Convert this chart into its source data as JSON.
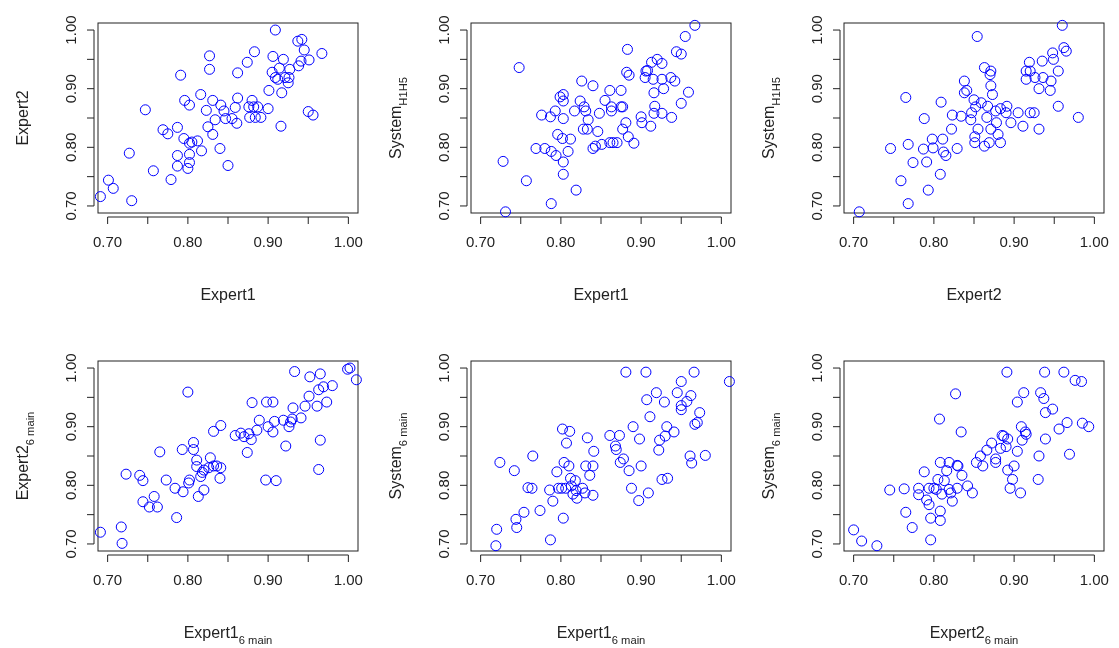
{
  "chart_data": [
    {
      "type": "scatter",
      "xlabel": "Expert1",
      "ylabel": "Expert2",
      "color": "#0000ff",
      "marker": "circle",
      "grid": false,
      "xlim": [
        0.688,
        1.012
      ],
      "ylim": [
        0.688,
        1.012
      ],
      "xticks": [
        {
          "value": 0.7,
          "label": "0.70"
        },
        {
          "value": 0.75,
          "label": null
        },
        {
          "value": 0.8,
          "label": "0.80"
        },
        {
          "value": 0.85,
          "label": null
        },
        {
          "value": 0.9,
          "label": "0.90"
        },
        {
          "value": 0.95,
          "label": null
        },
        {
          "value": 1,
          "label": "1.00"
        }
      ],
      "yticks": [
        {
          "value": 0.7,
          "label": "0.70"
        },
        {
          "value": 0.75,
          "label": null
        },
        {
          "value": 0.8,
          "label": "0.80"
        },
        {
          "value": 0.85,
          "label": null
        },
        {
          "value": 0.9,
          "label": "0.90"
        },
        {
          "value": 0.95,
          "label": null
        },
        {
          "value": 1,
          "label": "1.00"
        }
      ],
      "x": [
        0.691,
        0.701,
        0.707,
        0.727,
        0.73,
        0.747,
        0.757,
        0.769,
        0.775,
        0.779,
        0.787,
        0.787,
        0.787,
        0.791,
        0.795,
        0.796,
        0.8,
        0.802,
        0.802,
        0.802,
        0.802,
        0.805,
        0.812,
        0.817,
        0.816,
        0.823,
        0.825,
        0.827,
        0.827,
        0.831,
        0.831,
        0.834,
        0.84,
        0.841,
        0.845,
        0.847,
        0.85,
        0.855,
        0.861,
        0.862,
        0.862,
        0.859,
        0.874,
        0.876,
        0.877,
        0.88,
        0.882,
        0.883,
        0.884,
        0.887,
        0.891,
        0.9,
        0.901,
        0.906,
        0.905,
        0.909,
        0.912,
        0.914,
        0.917,
        0.916,
        0.919,
        0.921,
        0.925,
        0.927,
        0.926,
        0.938,
        0.937,
        0.942,
        0.941,
        0.945,
        0.951,
        0.95,
        0.956,
        0.967,
        0.909
      ],
      "values": [
        0.716,
        0.744,
        0.73,
        0.79,
        0.709,
        0.864,
        0.76,
        0.83,
        0.823,
        0.745,
        0.834,
        0.786,
        0.768,
        0.923,
        0.815,
        0.88,
        0.764,
        0.872,
        0.774,
        0.788,
        0.807,
        0.809,
        0.811,
        0.794,
        0.89,
        0.863,
        0.835,
        0.956,
        0.933,
        0.88,
        0.822,
        0.847,
        0.798,
        0.872,
        0.862,
        0.849,
        0.769,
        0.849,
        0.841,
        0.927,
        0.884,
        0.868,
        0.945,
        0.869,
        0.851,
        0.88,
        0.869,
        0.963,
        0.851,
        0.869,
        0.851,
        0.866,
        0.897,
        0.955,
        0.928,
        0.919,
        0.916,
        0.935,
        0.893,
        0.836,
        0.95,
        0.919,
        0.91,
        0.933,
        0.919,
        0.939,
        0.981,
        0.984,
        0.947,
        0.966,
        0.949,
        0.861,
        0.855,
        0.96,
        1.0
      ]
    },
    {
      "type": "scatter",
      "xlabel": "Expert1",
      "ylabel": "System$_{H1H5}$",
      "color": "#0000ff",
      "marker": "circle",
      "grid": false,
      "xlim": [
        0.688,
        1.012
      ],
      "ylim": [
        0.688,
        1.012
      ],
      "xticks": [
        {
          "value": 0.7,
          "label": "0.70"
        },
        {
          "value": 0.75,
          "label": null
        },
        {
          "value": 0.8,
          "label": "0.80"
        },
        {
          "value": 0.85,
          "label": null
        },
        {
          "value": 0.9,
          "label": "0.90"
        },
        {
          "value": 0.95,
          "label": null
        },
        {
          "value": 1,
          "label": "1.00"
        }
      ],
      "yticks": [
        {
          "value": 0.7,
          "label": "0.70"
        },
        {
          "value": 0.75,
          "label": null
        },
        {
          "value": 0.8,
          "label": "0.80"
        },
        {
          "value": 0.85,
          "label": null
        },
        {
          "value": 0.9,
          "label": "0.90"
        },
        {
          "value": 0.95,
          "label": null
        },
        {
          "value": 1,
          "label": "1.00"
        }
      ],
      "x": [
        0.731,
        0.728,
        0.748,
        0.757,
        0.769,
        0.776,
        0.78,
        0.787,
        0.788,
        0.793,
        0.794,
        0.796,
        0.799,
        0.802,
        0.803,
        0.803,
        0.803,
        0.803,
        0.803,
        0.809,
        0.812,
        0.817,
        0.819,
        0.788,
        0.824,
        0.826,
        0.829,
        0.831,
        0.828,
        0.833,
        0.834,
        0.84,
        0.84,
        0.843,
        0.846,
        0.848,
        0.851,
        0.855,
        0.861,
        0.861,
        0.863,
        0.863,
        0.865,
        0.87,
        0.875,
        0.875,
        0.877,
        0.877,
        0.881,
        0.883,
        0.882,
        0.885,
        0.884,
        0.891,
        0.9,
        0.901,
        0.905,
        0.906,
        0.908,
        0.912,
        0.913,
        0.916,
        0.917,
        0.916,
        0.915,
        0.92,
        0.926,
        0.926,
        0.926,
        0.928,
        0.937,
        0.938,
        0.942,
        0.944,
        0.95,
        0.95,
        0.955,
        0.959,
        0.967
      ],
      "values": [
        0.69,
        0.776,
        0.936,
        0.743,
        0.798,
        0.855,
        0.798,
        0.852,
        0.793,
        0.862,
        0.786,
        0.822,
        0.886,
        0.815,
        0.849,
        0.775,
        0.89,
        0.879,
        0.754,
        0.793,
        0.814,
        0.862,
        0.727,
        0.704,
        0.879,
        0.913,
        0.869,
        0.862,
        0.831,
        0.831,
        0.847,
        0.905,
        0.798,
        0.802,
        0.827,
        0.858,
        0.805,
        0.88,
        0.808,
        0.897,
        0.869,
        0.862,
        0.808,
        0.808,
        0.897,
        0.869,
        0.869,
        0.831,
        0.842,
        0.967,
        0.928,
        0.923,
        0.818,
        0.807,
        0.852,
        0.842,
        0.919,
        0.93,
        0.931,
        0.836,
        0.945,
        0.893,
        0.87,
        0.858,
        0.916,
        0.95,
        0.943,
        0.916,
        0.858,
        0.9,
        0.919,
        0.851,
        0.913,
        0.963,
        0.959,
        0.875,
        0.989,
        0.894,
        1.008
      ]
    },
    {
      "type": "scatter",
      "xlabel": "Expert2",
      "ylabel": "System$_{H1H5}$",
      "color": "#0000ff",
      "marker": "circle",
      "grid": false,
      "xlim": [
        0.688,
        1.012
      ],
      "ylim": [
        0.688,
        1.012
      ],
      "xticks": [
        {
          "value": 0.7,
          "label": "0.70"
        },
        {
          "value": 0.75,
          "label": null
        },
        {
          "value": 0.8,
          "label": "0.80"
        },
        {
          "value": 0.85,
          "label": null
        },
        {
          "value": 0.9,
          "label": "0.90"
        },
        {
          "value": 0.95,
          "label": null
        },
        {
          "value": 1,
          "label": "1.00"
        }
      ],
      "yticks": [
        {
          "value": 0.7,
          "label": "0.70"
        },
        {
          "value": 0.75,
          "label": null
        },
        {
          "value": 0.8,
          "label": "0.80"
        },
        {
          "value": 0.85,
          "label": null
        },
        {
          "value": 0.9,
          "label": "0.90"
        },
        {
          "value": 0.95,
          "label": null
        },
        {
          "value": 1,
          "label": "1.00"
        }
      ],
      "x": [
        0.707,
        0.746,
        0.759,
        0.765,
        0.768,
        0.768,
        0.774,
        0.787,
        0.788,
        0.791,
        0.793,
        0.798,
        0.799,
        0.809,
        0.808,
        0.811,
        0.812,
        0.815,
        0.822,
        0.823,
        0.829,
        0.834,
        0.838,
        0.838,
        0.841,
        0.846,
        0.847,
        0.85,
        0.851,
        0.851,
        0.852,
        0.854,
        0.855,
        0.859,
        0.863,
        0.863,
        0.866,
        0.867,
        0.869,
        0.87,
        0.871,
        0.871,
        0.871,
        0.873,
        0.877,
        0.878,
        0.88,
        0.883,
        0.883,
        0.89,
        0.891,
        0.896,
        0.905,
        0.911,
        0.915,
        0.915,
        0.919,
        0.92,
        0.92,
        0.925,
        0.926,
        0.931,
        0.931,
        0.935,
        0.936,
        0.945,
        0.946,
        0.948,
        0.949,
        0.955,
        0.955,
        0.96,
        0.962,
        0.965,
        0.98
      ],
      "values": [
        0.69,
        0.798,
        0.743,
        0.885,
        0.805,
        0.704,
        0.774,
        0.797,
        0.849,
        0.775,
        0.727,
        0.814,
        0.799,
        0.877,
        0.754,
        0.814,
        0.792,
        0.786,
        0.831,
        0.855,
        0.798,
        0.853,
        0.913,
        0.893,
        0.897,
        0.847,
        0.859,
        0.881,
        0.818,
        0.808,
        0.869,
        0.989,
        0.831,
        0.876,
        0.936,
        0.802,
        0.851,
        0.87,
        0.808,
        0.924,
        0.831,
        0.93,
        0.905,
        0.89,
        0.862,
        0.842,
        0.822,
        0.808,
        0.866,
        0.859,
        0.87,
        0.842,
        0.859,
        0.836,
        0.93,
        0.916,
        0.945,
        0.93,
        0.859,
        0.859,
        0.919,
        0.9,
        0.831,
        0.947,
        0.919,
        0.897,
        0.913,
        0.961,
        0.95,
        0.93,
        0.87,
        1.008,
        0.97,
        0.964,
        0.851
      ]
    },
    {
      "type": "scatter",
      "xlabel": "Expert1$_{6 main}$",
      "ylabel": "Expert2$_{6 main}$",
      "color": "#0000ff",
      "marker": "circle",
      "grid": false,
      "xlim": [
        0.688,
        1.012
      ],
      "ylim": [
        0.688,
        1.012
      ],
      "xticks": [
        {
          "value": 0.7,
          "label": "0.70"
        },
        {
          "value": 0.75,
          "label": null
        },
        {
          "value": 0.8,
          "label": "0.80"
        },
        {
          "value": 0.85,
          "label": null
        },
        {
          "value": 0.9,
          "label": "0.90"
        },
        {
          "value": 0.95,
          "label": null
        },
        {
          "value": 1,
          "label": "1.00"
        }
      ],
      "yticks": [
        {
          "value": 0.7,
          "label": "0.70"
        },
        {
          "value": 0.75,
          "label": null
        },
        {
          "value": 0.8,
          "label": "0.80"
        },
        {
          "value": 0.85,
          "label": null
        },
        {
          "value": 0.9,
          "label": "0.90"
        },
        {
          "value": 0.95,
          "label": null
        },
        {
          "value": 1,
          "label": "1.00"
        }
      ],
      "x": [
        0.691,
        0.717,
        0.718,
        0.723,
        0.74,
        0.744,
        0.744,
        0.752,
        0.758,
        0.762,
        0.765,
        0.773,
        0.784,
        0.786,
        0.793,
        0.794,
        0.8,
        0.801,
        0.802,
        0.807,
        0.807,
        0.811,
        0.811,
        0.813,
        0.816,
        0.818,
        0.82,
        0.82,
        0.826,
        0.828,
        0.832,
        0.832,
        0.836,
        0.84,
        0.841,
        0.841,
        0.859,
        0.866,
        0.87,
        0.874,
        0.876,
        0.879,
        0.88,
        0.886,
        0.889,
        0.897,
        0.898,
        0.9,
        0.906,
        0.906,
        0.908,
        0.91,
        0.919,
        0.922,
        0.926,
        0.928,
        0.93,
        0.931,
        0.933,
        0.941,
        0.946,
        0.951,
        0.952,
        0.961,
        0.963,
        0.965,
        0.963,
        0.965,
        0.969,
        0.973,
        0.98,
        0.999,
        1.002,
        1.01
      ],
      "values": [
        0.72,
        0.729,
        0.701,
        0.819,
        0.817,
        0.808,
        0.772,
        0.763,
        0.781,
        0.763,
        0.857,
        0.809,
        0.795,
        0.745,
        0.861,
        0.789,
        0.959,
        0.804,
        0.809,
        0.873,
        0.861,
        0.843,
        0.832,
        0.781,
        0.815,
        0.822,
        0.792,
        0.826,
        0.83,
        0.847,
        0.892,
        0.833,
        0.833,
        0.812,
        0.83,
        0.902,
        0.885,
        0.889,
        0.883,
        0.856,
        0.888,
        0.878,
        0.941,
        0.894,
        0.911,
        0.809,
        0.942,
        0.9,
        0.942,
        0.891,
        0.909,
        0.808,
        0.911,
        0.867,
        0.9,
        0.908,
        0.913,
        0.932,
        0.994,
        0.915,
        0.935,
        0.952,
        0.985,
        0.935,
        0.827,
        0.877,
        0.963,
        0.99,
        0.968,
        0.942,
        0.97,
        0.998,
        1.0,
        0.98
      ]
    },
    {
      "type": "scatter",
      "xlabel": "Expert1$_{6 main}$",
      "ylabel": "System$_{6 main}$",
      "color": "#0000ff",
      "marker": "circle",
      "grid": false,
      "xlim": [
        0.688,
        1.012
      ],
      "ylim": [
        0.688,
        1.012
      ],
      "xticks": [
        {
          "value": 0.7,
          "label": "0.70"
        },
        {
          "value": 0.75,
          "label": null
        },
        {
          "value": 0.8,
          "label": "0.80"
        },
        {
          "value": 0.85,
          "label": null
        },
        {
          "value": 0.9,
          "label": "0.90"
        },
        {
          "value": 0.95,
          "label": null
        },
        {
          "value": 1,
          "label": "1.00"
        }
      ],
      "yticks": [
        {
          "value": 0.7,
          "label": "0.70"
        },
        {
          "value": 0.75,
          "label": null
        },
        {
          "value": 0.8,
          "label": "0.80"
        },
        {
          "value": 0.85,
          "label": null
        },
        {
          "value": 0.9,
          "label": "0.90"
        },
        {
          "value": 0.95,
          "label": null
        },
        {
          "value": 1,
          "label": "1.00"
        }
      ],
      "x": [
        0.719,
        0.72,
        0.724,
        0.742,
        0.744,
        0.745,
        0.754,
        0.759,
        0.764,
        0.765,
        0.774,
        0.786,
        0.787,
        0.79,
        0.795,
        0.797,
        0.801,
        0.802,
        0.803,
        0.804,
        0.806,
        0.807,
        0.81,
        0.811,
        0.812,
        0.813,
        0.815,
        0.818,
        0.819,
        0.82,
        0.827,
        0.83,
        0.831,
        0.833,
        0.836,
        0.84,
        0.84,
        0.841,
        0.861,
        0.868,
        0.869,
        0.873,
        0.874,
        0.878,
        0.881,
        0.885,
        0.888,
        0.89,
        0.897,
        0.898,
        0.9,
        0.906,
        0.907,
        0.909,
        0.911,
        0.919,
        0.922,
        0.923,
        0.926,
        0.929,
        0.93,
        0.933,
        0.932,
        0.941,
        0.945,
        0.95,
        0.95,
        0.95,
        0.957,
        0.961,
        0.963,
        0.962,
        0.966,
        0.967,
        0.97,
        0.973,
        0.98,
        1.01
      ],
      "values": [
        0.697,
        0.725,
        0.839,
        0.825,
        0.742,
        0.728,
        0.754,
        0.796,
        0.795,
        0.85,
        0.757,
        0.792,
        0.707,
        0.773,
        0.823,
        0.795,
        0.795,
        0.896,
        0.744,
        0.839,
        0.795,
        0.872,
        0.833,
        0.892,
        0.812,
        0.799,
        0.785,
        0.808,
        0.791,
        0.778,
        0.795,
        0.787,
        0.833,
        0.881,
        0.817,
        0.833,
        0.783,
        0.858,
        0.885,
        0.867,
        0.861,
        0.885,
        0.839,
        0.845,
        0.993,
        0.825,
        0.795,
        0.9,
        0.774,
        0.879,
        0.833,
        0.993,
        0.946,
        0.787,
        0.917,
        0.958,
        0.86,
        0.877,
        0.81,
        0.942,
        0.884,
        0.812,
        0.9,
        0.891,
        0.958,
        0.977,
        0.936,
        0.929,
        0.943,
        0.85,
        0.838,
        0.953,
        0.993,
        0.904,
        0.907,
        0.924,
        0.851,
        0.977
      ]
    },
    {
      "type": "scatter",
      "xlabel": "Expert2$_{6 main}$",
      "ylabel": "System$_{6 main}$",
      "color": "#0000ff",
      "marker": "circle",
      "grid": false,
      "xlim": [
        0.688,
        1.012
      ],
      "ylim": [
        0.688,
        1.012
      ],
      "xticks": [
        {
          "value": 0.7,
          "label": "0.70"
        },
        {
          "value": 0.75,
          "label": null
        },
        {
          "value": 0.8,
          "label": "0.80"
        },
        {
          "value": 0.85,
          "label": null
        },
        {
          "value": 0.9,
          "label": "0.90"
        },
        {
          "value": 0.95,
          "label": null
        },
        {
          "value": 1,
          "label": "1.00"
        }
      ],
      "yticks": [
        {
          "value": 0.7,
          "label": "0.70"
        },
        {
          "value": 0.75,
          "label": null
        },
        {
          "value": 0.8,
          "label": "0.80"
        },
        {
          "value": 0.85,
          "label": null
        },
        {
          "value": 0.9,
          "label": "0.90"
        },
        {
          "value": 0.95,
          "label": null
        },
        {
          "value": 1,
          "label": "1.00"
        }
      ],
      "x": [
        0.7,
        0.71,
        0.729,
        0.745,
        0.763,
        0.765,
        0.773,
        0.781,
        0.781,
        0.788,
        0.791,
        0.794,
        0.794,
        0.796,
        0.796,
        0.8,
        0.803,
        0.805,
        0.807,
        0.808,
        0.808,
        0.808,
        0.81,
        0.813,
        0.816,
        0.819,
        0.819,
        0.823,
        0.821,
        0.827,
        0.829,
        0.83,
        0.829,
        0.834,
        0.835,
        0.842,
        0.848,
        0.853,
        0.858,
        0.861,
        0.866,
        0.872,
        0.877,
        0.877,
        0.883,
        0.885,
        0.887,
        0.89,
        0.891,
        0.892,
        0.892,
        0.895,
        0.898,
        0.9,
        0.904,
        0.904,
        0.908,
        0.909,
        0.912,
        0.91,
        0.914,
        0.915,
        0.93,
        0.931,
        0.933,
        0.937,
        0.938,
        0.939,
        0.939,
        0.948,
        0.956,
        0.962,
        0.966,
        0.969,
        0.976,
        0.984,
        0.985,
        0.993
      ],
      "values": [
        0.724,
        0.705,
        0.697,
        0.792,
        0.794,
        0.754,
        0.728,
        0.795,
        0.784,
        0.823,
        0.775,
        0.795,
        0.767,
        0.744,
        0.707,
        0.795,
        0.793,
        0.81,
        0.913,
        0.839,
        0.756,
        0.74,
        0.785,
        0.808,
        0.825,
        0.839,
        0.793,
        0.773,
        0.787,
        0.956,
        0.834,
        0.833,
        0.795,
        0.891,
        0.817,
        0.799,
        0.787,
        0.839,
        0.85,
        0.833,
        0.86,
        0.872,
        0.845,
        0.839,
        0.863,
        0.885,
        0.884,
        0.866,
        0.993,
        0.879,
        0.826,
        0.795,
        0.81,
        0.833,
        0.858,
        0.942,
        0.787,
        0.9,
        0.958,
        0.877,
        0.891,
        0.887,
        0.81,
        0.85,
        0.958,
        0.948,
        0.993,
        0.924,
        0.879,
        0.93,
        0.896,
        0.993,
        0.907,
        0.853,
        0.979,
        0.977,
        0.906,
        0.9
      ]
    }
  ]
}
